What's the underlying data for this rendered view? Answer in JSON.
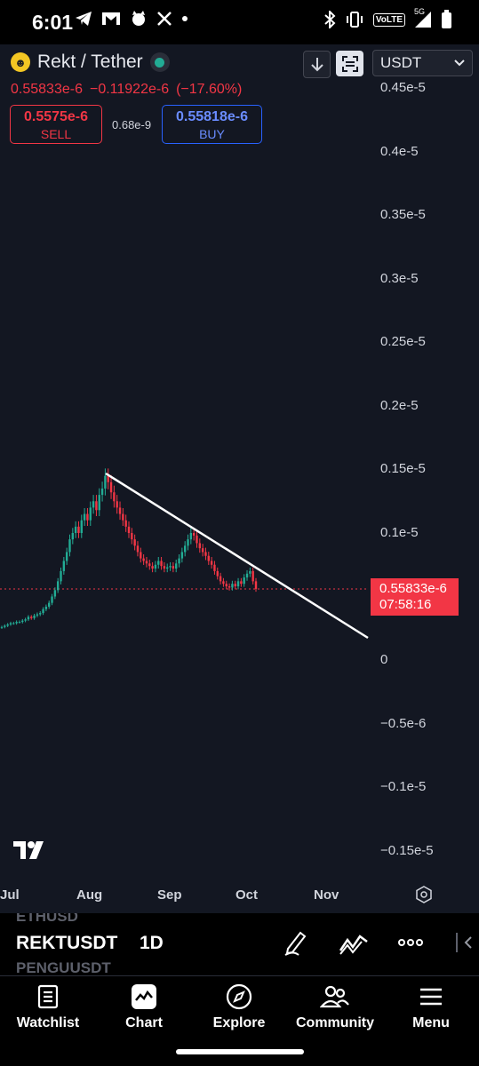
{
  "status_bar": {
    "time": "6:01",
    "left_icons": [
      "telegram-icon",
      "gmail-icon",
      "pet-icon",
      "x-icon",
      "dot-icon"
    ],
    "right_icons": [
      "bluetooth-icon",
      "vibrate-icon",
      "volte-icon",
      "signal-5g-icon",
      "battery-icon"
    ],
    "volte_label": "VoLTE",
    "network_label": "5G"
  },
  "header": {
    "symbol_title": "Rekt / Tether",
    "coin_icon": "rekt-coin-icon",
    "last_price": "0.55833e-6",
    "change": "−0.11922e-6",
    "change_pct": "(−17.60%)",
    "currency": "USDT"
  },
  "trade": {
    "sell_price": "0.5575e-6",
    "sell_label": "SELL",
    "spread": "0.68e-9",
    "buy_price": "0.55818e-6",
    "buy_label": "BUY"
  },
  "price_tag": {
    "price": "0.55833e-6",
    "countdown": "07:58:16"
  },
  "colors": {
    "background": "#131722",
    "up": "#22ab94",
    "down": "#f23645",
    "buy_accent": "#2962ff",
    "trendline": "#ffffff"
  },
  "chart_data": {
    "type": "candlestick",
    "y_ticks": [
      "0.45e-5",
      "0.4e-5",
      "0.35e-5",
      "0.3e-5",
      "0.25e-5",
      "0.2e-5",
      "0.15e-5",
      "0.1e-5",
      "0",
      "−0.5e-6",
      "−0.1e-5",
      "−0.15e-5"
    ],
    "x_ticks": [
      "Jul",
      "Aug",
      "Sep",
      "Oct",
      "Nov"
    ],
    "last_price_line": 5.5833e-07,
    "close_series": [
      0.26,
      0.27,
      0.28,
      0.29,
      0.29,
      0.3,
      0.3,
      0.31,
      0.32,
      0.34,
      0.33,
      0.35,
      0.36,
      0.37,
      0.4,
      0.42,
      0.45,
      0.5,
      0.55,
      0.62,
      0.7,
      0.78,
      0.85,
      0.95,
      1.0,
      1.05,
      1.0,
      1.1,
      1.15,
      1.1,
      1.2,
      1.25,
      1.18,
      1.3,
      1.35,
      1.45,
      1.4,
      1.32,
      1.25,
      1.2,
      1.15,
      1.1,
      1.05,
      1.0,
      0.95,
      0.9,
      0.85,
      0.8,
      0.78,
      0.76,
      0.74,
      0.72,
      0.75,
      0.78,
      0.74,
      0.72,
      0.73,
      0.74,
      0.72,
      0.76,
      0.8,
      0.85,
      0.9,
      0.95,
      1.0,
      0.98,
      0.92,
      0.88,
      0.85,
      0.82,
      0.78,
      0.75,
      0.7,
      0.66,
      0.62,
      0.6,
      0.58,
      0.57,
      0.6,
      0.58,
      0.62,
      0.6,
      0.65,
      0.68,
      0.7,
      0.62,
      0.56
    ],
    "close_units": "e-6",
    "trendline": {
      "from": {
        "x": "Aug",
        "y": 1.5e-06
      },
      "to": {
        "x": "Nov",
        "y": 1.8e-07
      }
    }
  },
  "symbol_bar": {
    "prev_symbol": "ETHUSD",
    "symbol": "REKTUSDT",
    "next_symbol": "PENGUUSDT",
    "interval": "1D",
    "icons": [
      "draw-icon",
      "indicators-icon",
      "more-icon"
    ]
  },
  "nav": {
    "items": [
      {
        "label": "Watchlist",
        "icon": "watchlist-icon"
      },
      {
        "label": "Chart",
        "icon": "chart-icon"
      },
      {
        "label": "Explore",
        "icon": "explore-icon"
      },
      {
        "label": "Community",
        "icon": "community-icon"
      },
      {
        "label": "Menu",
        "icon": "menu-icon"
      }
    ]
  }
}
